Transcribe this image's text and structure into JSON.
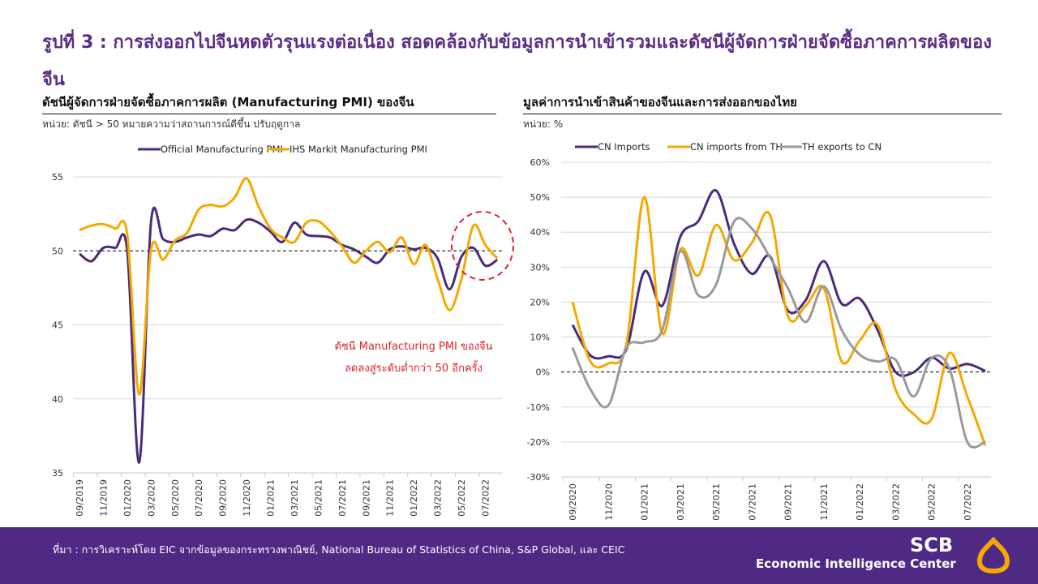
{
  "title": "รูปที่ 3 : การส่งออกไปจีนหดตัวรุนแรงต่อเนื่อง สอดคล้องกับข้อมูลการนำเข้ารวมและดัชนีผู้จัดการฝ่ายจัดซื้อภาคการผลิตของจีน",
  "left": {
    "heading": "ดัชนีผู้จัดการฝ่ายจัดซื้อภาคการผลิต (Manufacturing PMI) ของจีน",
    "unit": "หน่วย: ดัชนี > 50 หมายความว่าสถานการณ์ดีขึ้น ปรับฤดูกาล",
    "annotation_line1": "ดัชนี Manufacturing PMI ของจีน",
    "annotation_line2": "ลดลงสู่ระดับต่ำกว่า 50 อีกครั้ง"
  },
  "right": {
    "heading": "มูลค่าการนำเข้าสินค้าของจีนและการส่งออกของไทย",
    "unit": "หน่วย: %"
  },
  "footer": {
    "source": "ที่มา : การวิเคราะห์โดย EIC จากข้อมูลของกระทรวงพาณิชย์, National Bureau of Statistics of China, S&P Global, และ CEIC",
    "logo_scb": "SCB",
    "logo_eic": "Economic Intelligence Center"
  },
  "colors": {
    "purple": "#4b2a7b",
    "gold": "#f5a800",
    "gray": "#9a9a9a",
    "title": "#5a2d86",
    "footer": "#4e2a84",
    "annotation": "#e0202a"
  },
  "chart_data": [
    {
      "type": "line",
      "ylim": [
        35,
        55
      ],
      "yticks": [
        35,
        40,
        45,
        50,
        55
      ],
      "reference_line": 50,
      "grid": true,
      "legend": "top",
      "x": [
        "09/2019",
        "10/2019",
        "11/2019",
        "12/2019",
        "01/2020",
        "02/2020",
        "03/2020",
        "04/2020",
        "05/2020",
        "06/2020",
        "07/2020",
        "08/2020",
        "09/2020",
        "10/2020",
        "11/2020",
        "12/2020",
        "01/2021",
        "02/2021",
        "03/2021",
        "04/2021",
        "05/2021",
        "06/2021",
        "07/2021",
        "08/2021",
        "09/2021",
        "10/2021",
        "11/2021",
        "12/2021",
        "01/2022",
        "02/2022",
        "03/2022",
        "04/2022",
        "05/2022",
        "06/2022",
        "07/2022",
        "08/2022"
      ],
      "xtick_labels": [
        "09/2019",
        "11/2019",
        "01/2020",
        "03/2020",
        "05/2020",
        "07/2020",
        "09/2020",
        "11/2020",
        "01/2021",
        "03/2021",
        "05/2021",
        "07/2021",
        "09/2021",
        "11/2021",
        "01/2022",
        "03/2022",
        "05/2022",
        "07/2022"
      ],
      "series": [
        {
          "name": "Official Manufacturing PMI",
          "color": "#4b2a7b",
          "values": [
            49.8,
            49.3,
            50.2,
            50.2,
            50.0,
            35.7,
            52.0,
            50.8,
            50.6,
            50.9,
            51.1,
            51.0,
            51.5,
            51.4,
            52.1,
            51.9,
            51.3,
            50.6,
            51.9,
            51.1,
            51.0,
            50.9,
            50.4,
            50.1,
            49.6,
            49.2,
            50.1,
            50.3,
            50.1,
            50.2,
            49.5,
            47.4,
            49.6,
            50.2,
            49.0,
            49.4
          ]
        },
        {
          "name": "IHS Markit Manufacturing PMI",
          "color": "#f5a800",
          "values": [
            51.4,
            51.7,
            51.8,
            51.5,
            51.1,
            40.3,
            50.1,
            49.4,
            50.7,
            51.2,
            52.8,
            53.1,
            53.0,
            53.6,
            54.9,
            53.0,
            51.5,
            50.9,
            50.6,
            51.9,
            52.0,
            51.3,
            50.3,
            49.2,
            50.0,
            50.6,
            49.9,
            50.9,
            49.1,
            50.4,
            48.1,
            46.0,
            48.1,
            51.7,
            50.4,
            49.5
          ]
        }
      ]
    },
    {
      "type": "line",
      "ylim": [
        -30,
        60
      ],
      "yticks": [
        -30,
        -20,
        -10,
        0,
        10,
        20,
        30,
        40,
        50,
        60
      ],
      "ytick_format": "%",
      "reference_line": 0,
      "grid": true,
      "legend": "top",
      "x": [
        "09/2020",
        "10/2020",
        "11/2020",
        "12/2020",
        "01/2021",
        "02/2021",
        "03/2021",
        "04/2021",
        "05/2021",
        "06/2021",
        "07/2021",
        "08/2021",
        "09/2021",
        "10/2021",
        "11/2021",
        "12/2021",
        "01/2022",
        "02/2022",
        "03/2022",
        "04/2022",
        "05/2022",
        "06/2022",
        "07/2022",
        "08/2022"
      ],
      "xtick_labels": [
        "09/2020",
        "11/2020",
        "01/2021",
        "03/2021",
        "05/2021",
        "07/2021",
        "09/2021",
        "11/2021",
        "01/2022",
        "03/2022",
        "05/2022",
        "07/2022"
      ],
      "series": [
        {
          "name": "CN Imports",
          "color": "#4b2a7b",
          "values": [
            13.5,
            4.7,
            4.5,
            6.5,
            28.7,
            19,
            38.6,
            43.1,
            51.9,
            36.7,
            28.1,
            33.1,
            17.6,
            20.6,
            31.7,
            19.5,
            21,
            12,
            0,
            -0.1,
            4.1,
            1,
            2.3,
            0.3
          ]
        },
        {
          "name": "CN imports from TH",
          "color": "#f5a800",
          "values": [
            20,
            3,
            2.5,
            8,
            50,
            11,
            35,
            27.6,
            42,
            32,
            37,
            45,
            16,
            19,
            24,
            3,
            9,
            13.5,
            -5,
            -12,
            -13.5,
            5.4,
            -7,
            -21
          ]
        },
        {
          "name": "TH exports to CN",
          "color": "#9a9a9a",
          "values": [
            7,
            -5,
            -9.5,
            7,
            8.5,
            12,
            34.5,
            22,
            25,
            43,
            41,
            32.8,
            24,
            14.3,
            24.5,
            12,
            5,
            3,
            3.5,
            -7,
            4,
            1,
            -20,
            -20
          ]
        }
      ]
    }
  ]
}
